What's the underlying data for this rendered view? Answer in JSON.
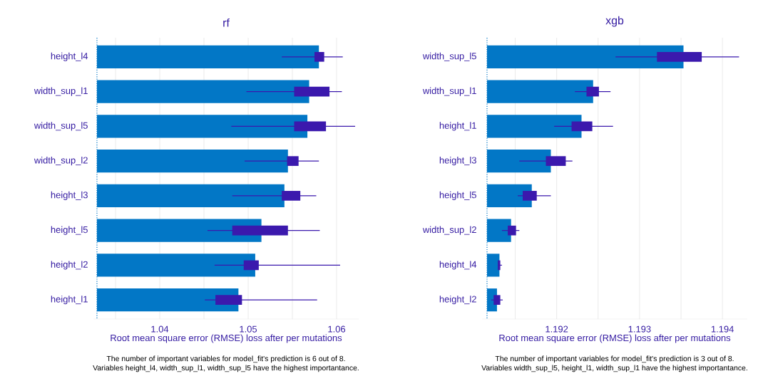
{
  "chart_data": [
    {
      "type": "bar",
      "orientation": "horizontal",
      "title": "rf",
      "xlabel": "Root mean square error (RMSE) loss after per mutations",
      "categories": [
        "height_l4",
        "width_sup_l1",
        "width_sup_l5",
        "width_sup_l2",
        "height_l3",
        "height_l5",
        "height_l2",
        "height_l1"
      ],
      "xlim": [
        1.0325,
        1.0625
      ],
      "xticks": [
        {
          "value": 1.035,
          "label": null
        },
        1.04,
        {
          "value": 1.045,
          "label": null
        },
        1.05,
        {
          "value": 1.055,
          "label": null
        },
        1.06
      ],
      "grid": "x",
      "ref_lines": [
        {
          "axis": "x",
          "value": 1.0329,
          "color": "#0277c6",
          "line_style": "dotted"
        }
      ],
      "series": [
        {
          "type": "bar",
          "color": "#0277c6",
          "base": [
            1.0329,
            1.0329,
            1.0329,
            1.0329,
            1.0329,
            1.0329,
            1.0329,
            1.0329
          ],
          "values": [
            0.0251,
            0.024,
            0.0238,
            0.0216,
            0.0212,
            0.0186,
            0.0179,
            0.016
          ]
        },
        {
          "type": "box",
          "color": "#3b19ad",
          "boxes": [
            {
              "low": 1.0538,
              "q1": 1.0575,
              "q3": 1.0586,
              "high": 1.0607
            },
            {
              "low": 1.0498,
              "q1": 1.0552,
              "q3": 1.0592,
              "high": 1.0606
            },
            {
              "low": 1.0481,
              "q1": 1.0552,
              "q3": 1.0588,
              "high": 1.0621
            },
            {
              "low": 1.0496,
              "q1": 1.0544,
              "q3": 1.0557,
              "high": 1.058
            },
            {
              "low": 1.0482,
              "q1": 1.0538,
              "q3": 1.0559,
              "high": 1.0577
            },
            {
              "low": 1.0454,
              "q1": 1.0482,
              "q3": 1.0545,
              "high": 1.0581
            },
            {
              "low": 1.0462,
              "q1": 1.0495,
              "q3": 1.0512,
              "high": 1.0604
            },
            {
              "low": 1.0451,
              "q1": 1.0463,
              "q3": 1.0493,
              "high": 1.0578
            }
          ]
        }
      ],
      "annotations": [
        "The number of important variables for model_fit's prediction is 6 out of 8.",
        "Variables height_l4, width_sup_l1, width_sup_l5 have the highest importantance."
      ]
    },
    {
      "type": "bar",
      "orientation": "horizontal",
      "title": "xgb",
      "xlabel": "Root mean square error (RMSE) loss after per mutations",
      "categories": [
        "width_sup_l5",
        "width_sup_l1",
        "height_l1",
        "height_l3",
        "height_l5",
        "width_sup_l2",
        "height_l4",
        "height_l2"
      ],
      "xlim": [
        1.1911,
        1.1943
      ],
      "xticks": [
        {
          "value": 1.1915,
          "label": null
        },
        1.192,
        {
          "value": 1.1925,
          "label": null
        },
        1.193,
        {
          "value": 1.1935,
          "label": null
        },
        1.194
      ],
      "grid": "x",
      "ref_lines": [
        {
          "axis": "x",
          "value": 1.19116,
          "color": "#0277c6",
          "line_style": "dotted"
        }
      ],
      "series": [
        {
          "type": "bar",
          "color": "#0277c6",
          "base": [
            1.19116,
            1.19116,
            1.19116,
            1.19116,
            1.19116,
            1.19116,
            1.19116,
            1.19116
          ],
          "values": [
            0.00237,
            0.00128,
            0.00114,
            0.00077,
            0.00054,
            0.00029,
            0.00015,
            0.00012
          ]
        },
        {
          "type": "box",
          "color": "#3b19ad",
          "boxes": [
            {
              "low": 1.19271,
              "q1": 1.19321,
              "q3": 1.19375,
              "high": 1.1942
            },
            {
              "low": 1.19222,
              "q1": 1.19236,
              "q3": 1.19251,
              "high": 1.19265
            },
            {
              "low": 1.19197,
              "q1": 1.19218,
              "q3": 1.19243,
              "high": 1.19268
            },
            {
              "low": 1.19155,
              "q1": 1.19187,
              "q3": 1.19211,
              "high": 1.19219
            },
            {
              "low": 1.19153,
              "q1": 1.19159,
              "q3": 1.19176,
              "high": 1.19193
            },
            {
              "low": 1.19134,
              "q1": 1.19141,
              "q3": 1.19151,
              "high": 1.19155
            },
            {
              "low": 1.19129,
              "q1": 1.19129,
              "q3": 1.19132,
              "high": 1.19134
            },
            {
              "low": 1.19121,
              "q1": 1.19124,
              "q3": 1.19132,
              "high": 1.19135
            }
          ]
        }
      ],
      "annotations": [
        "The number of important variables for model_fit's prediction is 3 out of 8.",
        "Variables width_sup_l5, height_l1, width_sup_l1 have the highest importantance."
      ]
    }
  ]
}
